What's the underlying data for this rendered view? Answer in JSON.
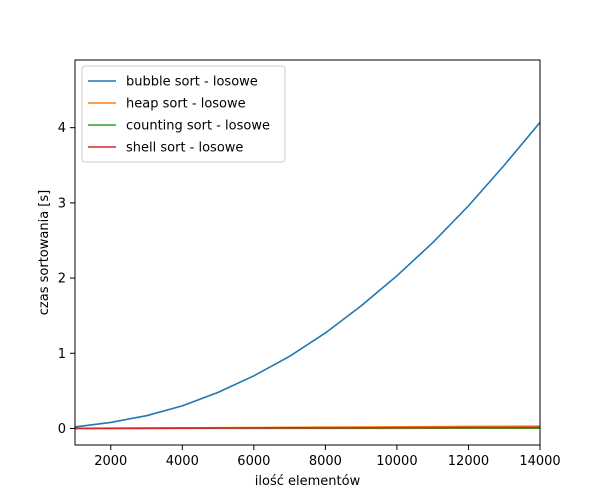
{
  "chart_data": {
    "type": "line",
    "title": "",
    "xlabel": "ilość elementów",
    "ylabel": "czas sortowania [s]",
    "xlim": [
      1000,
      14000
    ],
    "ylim": [
      -0.22,
      4.9
    ],
    "xticks": [
      2000,
      4000,
      6000,
      8000,
      10000,
      12000,
      14000
    ],
    "yticks": [
      0,
      1,
      2,
      3,
      4
    ],
    "grid": false,
    "legend_position": "top-left",
    "x": [
      1000,
      2000,
      3000,
      4000,
      5000,
      6000,
      7000,
      8000,
      9000,
      10000,
      11000,
      12000,
      13000,
      14000
    ],
    "series": [
      {
        "name": "bubble sort - losowe",
        "color": "#1f77b4",
        "values": [
          0.02,
          0.08,
          0.17,
          0.3,
          0.48,
          0.7,
          0.96,
          1.27,
          1.63,
          2.03,
          2.47,
          2.96,
          3.5,
          4.07
        ]
      },
      {
        "name": "heap sort - losowe",
        "color": "#ff7f0e",
        "values": [
          0.002,
          0.004,
          0.006,
          0.008,
          0.01,
          0.012,
          0.015,
          0.017,
          0.019,
          0.022,
          0.024,
          0.027,
          0.029,
          0.031
        ]
      },
      {
        "name": "counting sort - losowe",
        "color": "#2ca02c",
        "values": [
          0.0003,
          0.0005,
          0.0008,
          0.001,
          0.0013,
          0.0015,
          0.0018,
          0.002,
          0.0023,
          0.0025,
          0.0028,
          0.003,
          0.0033,
          0.0035
        ]
      },
      {
        "name": "shell sort - losowe",
        "color": "#d62728",
        "values": [
          0.001,
          0.002,
          0.003,
          0.004,
          0.006,
          0.007,
          0.008,
          0.009,
          0.01,
          0.011,
          0.012,
          0.013,
          0.014,
          0.015
        ]
      }
    ]
  }
}
